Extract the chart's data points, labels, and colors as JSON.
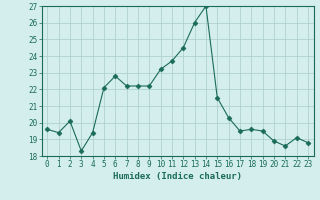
{
  "x": [
    0,
    1,
    2,
    3,
    4,
    5,
    6,
    7,
    8,
    9,
    10,
    11,
    12,
    13,
    14,
    15,
    16,
    17,
    18,
    19,
    20,
    21,
    22,
    23
  ],
  "y": [
    19.6,
    19.4,
    20.1,
    18.3,
    19.4,
    22.1,
    22.8,
    22.2,
    22.2,
    22.2,
    23.2,
    23.7,
    24.5,
    26.0,
    27.0,
    21.5,
    20.3,
    19.5,
    19.6,
    19.5,
    18.9,
    18.6,
    19.1,
    18.8
  ],
  "line_color": "#1a6b5a",
  "marker": "D",
  "marker_size": 2.5,
  "bg_color": "#d4eeee",
  "grid_color": "#aacccc",
  "xlabel": "Humidex (Indice chaleur)",
  "ylim": [
    18,
    27
  ],
  "xlim_min": -0.5,
  "xlim_max": 23.5,
  "yticks": [
    18,
    19,
    20,
    21,
    22,
    23,
    24,
    25,
    26,
    27
  ],
  "xticks": [
    0,
    1,
    2,
    3,
    4,
    5,
    6,
    7,
    8,
    9,
    10,
    11,
    12,
    13,
    14,
    15,
    16,
    17,
    18,
    19,
    20,
    21,
    22,
    23
  ],
  "xlabel_fontsize": 6.5,
  "tick_fontsize": 5.5,
  "label_color": "#1a6b5a",
  "spine_color": "#1a6b5a"
}
